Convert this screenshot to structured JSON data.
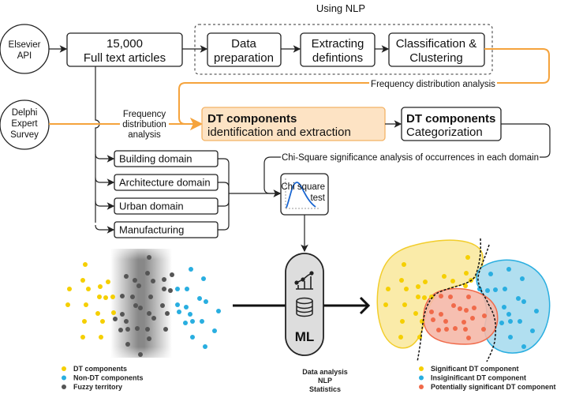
{
  "header": {
    "nlp_group_label": "Using NLP"
  },
  "sources": {
    "elsevier": [
      "Elsevier",
      "API"
    ],
    "delphi": [
      "Delphi",
      "Expert",
      "Survey"
    ]
  },
  "articles": {
    "count": "15,000",
    "label": "Full text articles"
  },
  "nlp_steps": [
    [
      "Data",
      "preparation"
    ],
    [
      "Extracting",
      "defintions"
    ],
    [
      "Classification &",
      "Clustering"
    ]
  ],
  "frequency_label_top": "Frequency distribution analysis",
  "frequency_label_left": [
    "Frequency",
    "distribution",
    "analysis"
  ],
  "dt_identification": {
    "title": "DT components",
    "subtitle": "identification and extraction"
  },
  "dt_categorization": {
    "title": "DT components",
    "subtitle": "Categorization"
  },
  "chi_square_label": "Chi-Square significance analysis of occurrences in each domain",
  "domains": [
    "Building domain",
    "Architecture domain",
    "Urban domain",
    "Manufacturing"
  ],
  "chi_test": [
    "Chi square",
    "test"
  ],
  "ml": {
    "label": "ML",
    "caption": [
      "Data analysis",
      "NLP",
      "Statistics"
    ]
  },
  "legend_left": [
    {
      "label": "DT components",
      "color": "#f5cf00"
    },
    {
      "label": "Non-DT components",
      "color": "#29aee0"
    },
    {
      "label": "Fuzzy territory",
      "color": "#555555"
    }
  ],
  "legend_right": [
    {
      "label": "Significant DT component",
      "color": "#f5cf00"
    },
    {
      "label": "Insiginificant DT component",
      "color": "#29aee0"
    },
    {
      "label": "Potentially significant DT component",
      "color": "#f06a4a"
    }
  ],
  "colors": {
    "accent_orange": "#f5a33c",
    "highlight_fill": "#fde3c4"
  }
}
